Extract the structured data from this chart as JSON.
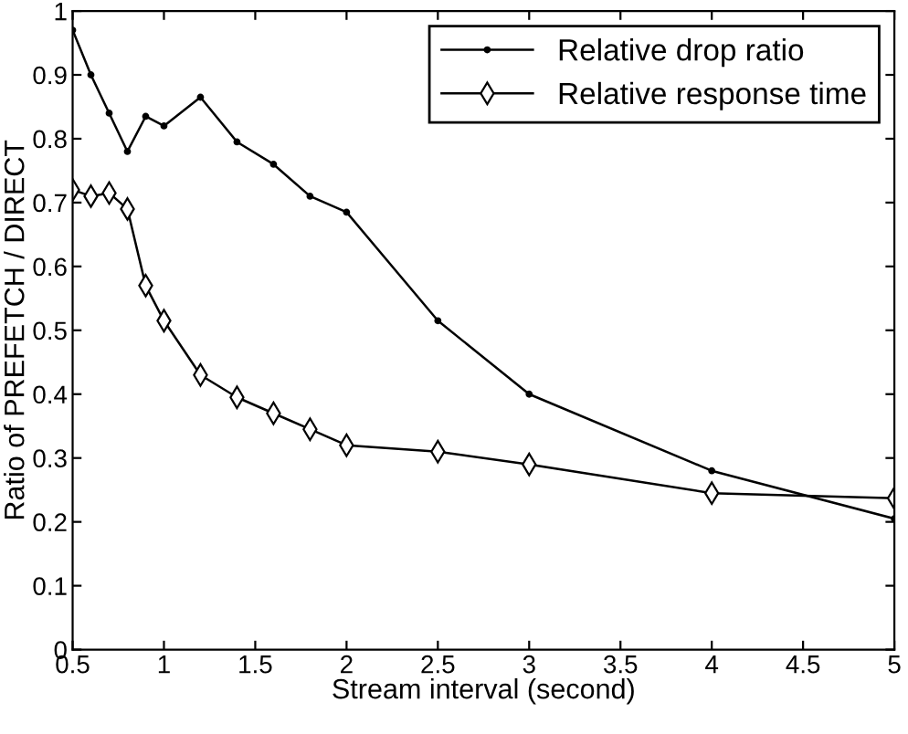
{
  "chart_data": {
    "type": "line",
    "xlabel": "Stream interval (second)",
    "ylabel": "Ratio of PREFETCH / DIRECT",
    "x": [
      0.5,
      0.6,
      0.7,
      0.8,
      0.9,
      1.0,
      1.2,
      1.4,
      1.6,
      1.8,
      2,
      2.5,
      3,
      4,
      5
    ],
    "series": [
      {
        "name": "Relative drop ratio",
        "color": "#000000",
        "marker": "circle",
        "values": [
          0.97,
          0.9,
          0.84,
          0.78,
          0.835,
          0.82,
          0.865,
          0.795,
          0.76,
          0.71,
          0.685,
          0.515,
          0.4,
          0.28,
          0.205
        ]
      },
      {
        "name": "Relative response time",
        "color": "#000000",
        "marker": "diamond",
        "values": [
          0.72,
          0.71,
          0.715,
          0.69,
          0.57,
          0.515,
          0.43,
          0.395,
          0.37,
          0.345,
          0.32,
          0.31,
          0.29,
          0.245,
          0.237
        ]
      }
    ],
    "xlim": [
      0.5,
      5
    ],
    "xticks": [
      0.5,
      1,
      1.5,
      2,
      2.5,
      3,
      3.5,
      4,
      4.5,
      5
    ],
    "ylim": [
      0,
      1
    ],
    "yticks": [
      0,
      0.1,
      0.2,
      0.3,
      0.4,
      0.5,
      0.6,
      0.7,
      0.8,
      0.9,
      1
    ],
    "grid": false,
    "legend": "top right",
    "line_style": "solid"
  }
}
